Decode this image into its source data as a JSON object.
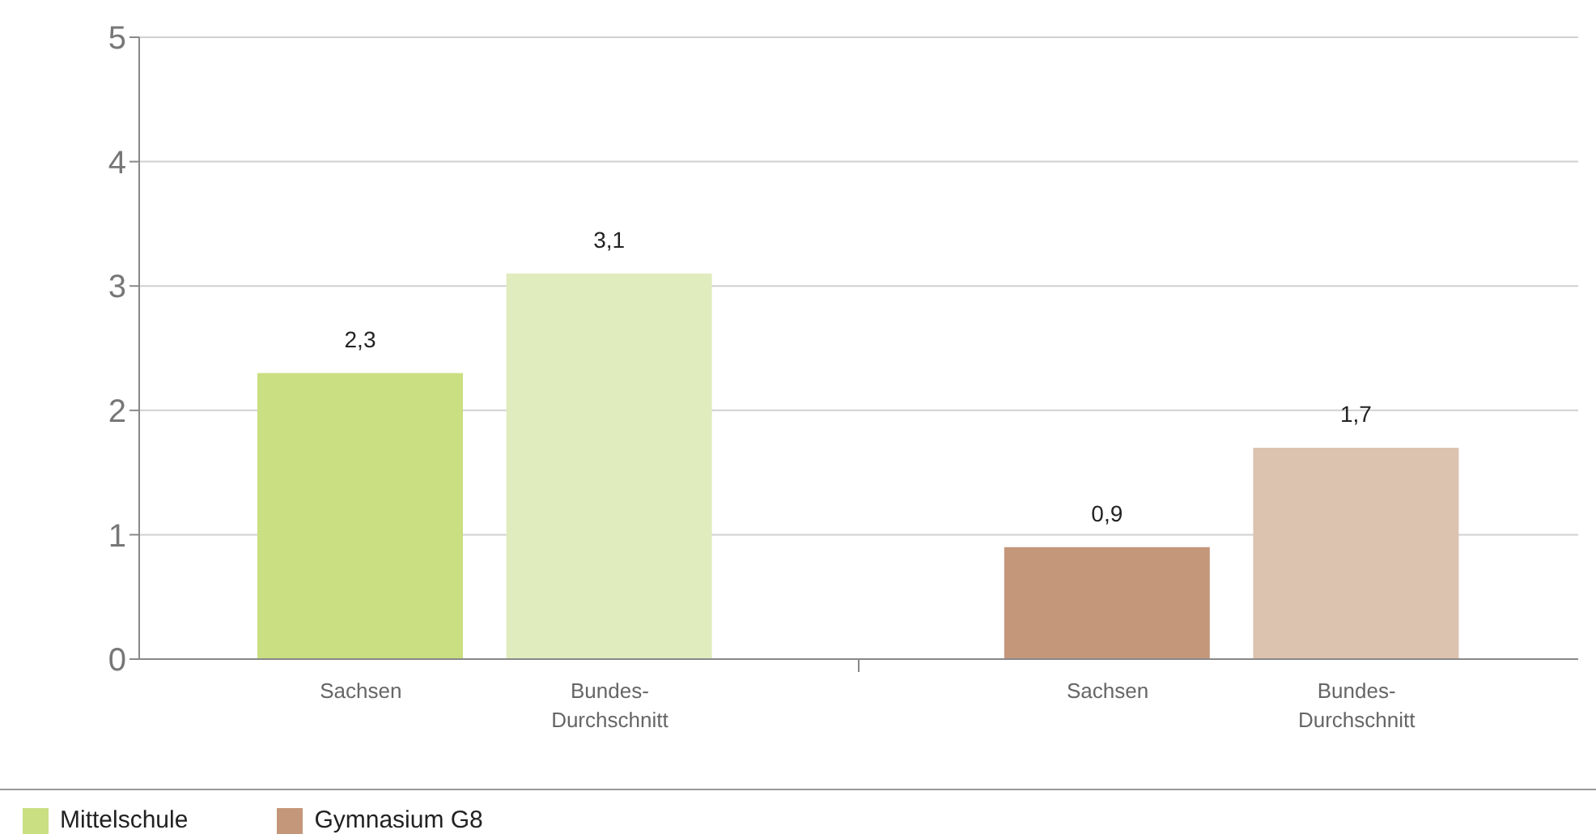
{
  "chart_data": {
    "type": "bar",
    "categories": [
      "Sachsen",
      "Bundes-Durchschnitt",
      "Sachsen",
      "Bundes-Durchschnitt"
    ],
    "series": [
      {
        "name": "Mittelschule",
        "color": "#c9df82",
        "colors": [
          "#c9df82",
          "#e0ecbd",
          null,
          null
        ],
        "values": [
          2.3,
          3.1,
          null,
          null
        ],
        "value_labels": [
          "2,3",
          "3,1",
          null,
          null
        ]
      },
      {
        "name": "Gymnasium G8",
        "color": "#c4977a",
        "colors": [
          null,
          null,
          "#c4977a",
          "#dcc3b0"
        ],
        "values": [
          null,
          null,
          0.9,
          1.7
        ],
        "value_labels": [
          null,
          null,
          "0,9",
          "1,7"
        ]
      }
    ],
    "ylim": [
      0,
      5
    ],
    "yticks": [
      0,
      1,
      2,
      3,
      4,
      5
    ],
    "grid": "y",
    "legend": "bottom"
  }
}
